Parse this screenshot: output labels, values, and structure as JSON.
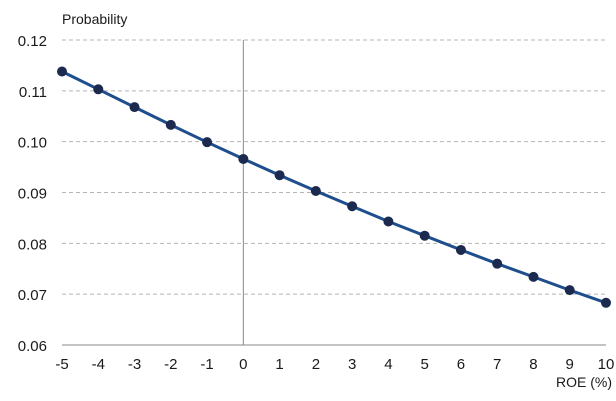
{
  "chart_data": {
    "type": "line",
    "title": "",
    "ylabel": "Probability",
    "xlabel": "ROE (%)",
    "x": [
      -5,
      -4,
      -3,
      -2,
      -1,
      0,
      1,
      2,
      3,
      4,
      5,
      6,
      7,
      8,
      9,
      10
    ],
    "series": [
      {
        "values": [
          0.1138,
          0.1103,
          0.1068,
          0.1033,
          0.0999,
          0.0966,
          0.0934,
          0.0903,
          0.0873,
          0.0843,
          0.0815,
          0.0787,
          0.076,
          0.0734,
          0.0708,
          0.0683
        ]
      }
    ],
    "xlim": [
      -5,
      10
    ],
    "ylim": [
      0.06,
      0.12
    ],
    "x_ticks": [
      "-5",
      "-4",
      "-3",
      "-2",
      "-1",
      "0",
      "1",
      "2",
      "3",
      "4",
      "5",
      "6",
      "7",
      "8",
      "9",
      "10"
    ],
    "y_ticks": [
      "0.06",
      "0.07",
      "0.08",
      "0.09",
      "0.10",
      "0.11",
      "0.12"
    ],
    "y_tick_values": [
      0.06,
      0.07,
      0.08,
      0.09,
      0.1,
      0.11,
      0.12
    ],
    "grid": "horizontal dashed",
    "colors": {
      "line": "#1f4e8c",
      "marker": "#1b2a4e",
      "grid": "#b5b5b5",
      "axis": "#8a8a8a"
    }
  }
}
